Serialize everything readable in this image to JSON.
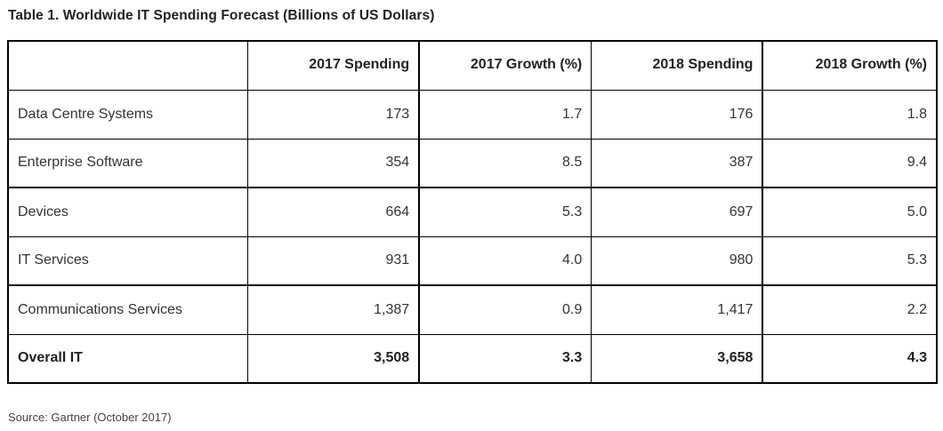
{
  "title": "Table 1. Worldwide IT Spending Forecast (Billions of US Dollars)",
  "table": {
    "headers": [
      "",
      "2017 Spending",
      "2017 Growth (%)",
      "2018 Spending",
      "2018 Growth (%)"
    ],
    "rows": [
      [
        "Data Centre Systems",
        "173",
        "1.7",
        "176",
        "1.8"
      ],
      [
        "Enterprise Software",
        "354",
        "8.5",
        "387",
        "9.4"
      ],
      [
        "Devices",
        "664",
        "5.3",
        "697",
        "5.0"
      ],
      [
        "IT Services",
        "931",
        "4.0",
        "980",
        "5.3"
      ],
      [
        "Communications Services",
        "1,387",
        "0.9",
        "1,417",
        "2.2"
      ],
      [
        "Overall IT",
        "3,508",
        "3.3",
        "3,658",
        "4.3"
      ]
    ]
  },
  "source": "Source: Gartner (October 2017)"
}
